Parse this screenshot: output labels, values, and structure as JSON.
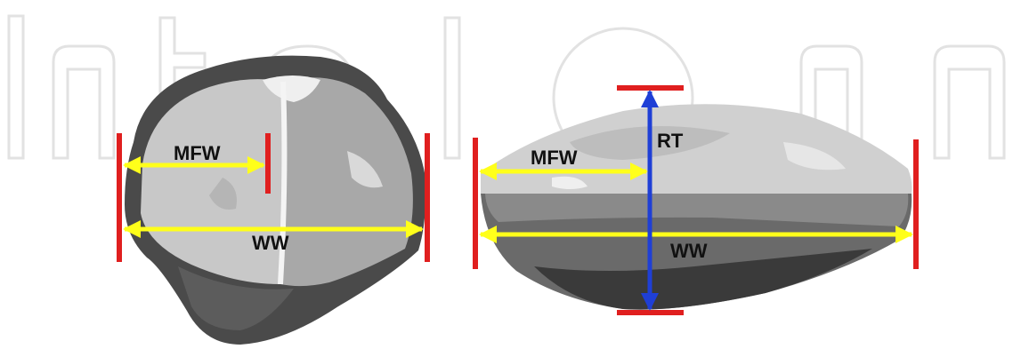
{
  "watermark": {
    "text": "IntechOpen",
    "color": "#e2e2e2"
  },
  "colors": {
    "boundary_marker": "#e01f1f",
    "width_arrow": "#ffff1a",
    "thickness_arrow": "#1f3fd6",
    "label_text": "#111111"
  },
  "figures": [
    {
      "view": "top-view",
      "labels": {
        "mfw": "MFW",
        "ww": "WW"
      }
    },
    {
      "view": "side-view",
      "labels": {
        "mfw": "MFW",
        "rt": "RT",
        "ww": "WW"
      }
    }
  ]
}
